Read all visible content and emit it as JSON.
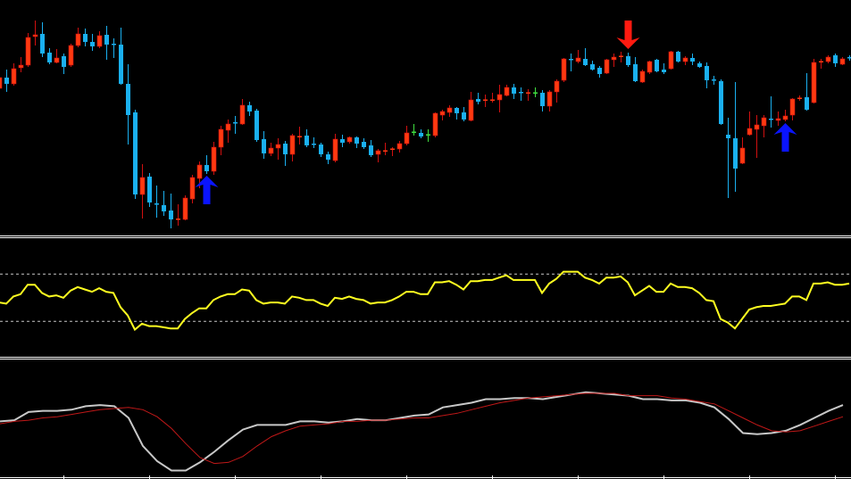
{
  "colors": {
    "background": "#000000",
    "bull_body": "#ff3a10",
    "bull_wick": "#d01010",
    "bear": "#1ab0f0",
    "doji_neutral": "#40e040",
    "buy_arrow": "#0a14ff",
    "sell_arrow": "#ff1a10",
    "oscillator": "#ffff20",
    "level_line": "#c8c8c8",
    "slow_line_silver": "#c8c8c8",
    "signal_line_red": "#c01818",
    "separator": "#ffffff"
  },
  "chart_data": [
    {
      "type": "candlestick",
      "panel": "main",
      "note_fields": [
        "open",
        "high",
        "low",
        "close"
      ],
      "ylim": [
        0,
        270
      ],
      "grid": false,
      "candles": [
        [
          171,
          186,
          167,
          183
        ],
        [
          183,
          192,
          167,
          176
        ],
        [
          176,
          199,
          174,
          193
        ],
        [
          194,
          206,
          189,
          197
        ],
        [
          197,
          233,
          195,
          228
        ],
        [
          229,
          247,
          219,
          231
        ],
        [
          232,
          245,
          206,
          210
        ],
        [
          211,
          216,
          198,
          200
        ],
        [
          200,
          215,
          199,
          205
        ],
        [
          207,
          210,
          187,
          195
        ],
        [
          197,
          221,
          195,
          219
        ],
        [
          219,
          239,
          217,
          232
        ],
        [
          232,
          238,
          218,
          223
        ],
        [
          223,
          232,
          213,
          218
        ],
        [
          218,
          235,
          216,
          230
        ],
        [
          231,
          241,
          203,
          220
        ],
        [
          220.5,
          227,
          205,
          220
        ],
        [
          220,
          239,
          175,
          176
        ],
        [
          176,
          198,
          108,
          141
        ],
        [
          144,
          147,
          47,
          52
        ],
        [
          52,
          86,
          25,
          71
        ],
        [
          72,
          76,
          38,
          43
        ],
        [
          41.5,
          62,
          26,
          41
        ],
        [
          40,
          56,
          28,
          33
        ],
        [
          34,
          53,
          14,
          24
        ],
        [
          24,
          41,
          17,
          24.5
        ],
        [
          24,
          51,
          23,
          48
        ],
        [
          47,
          74,
          42,
          71
        ],
        [
          70,
          89,
          59,
          85
        ],
        [
          85,
          96,
          75,
          78
        ],
        [
          78,
          111,
          74,
          105
        ],
        [
          105,
          129,
          96,
          125
        ],
        [
          124,
          136,
          110,
          131
        ],
        [
          132.5,
          140,
          120,
          132
        ],
        [
          131,
          159,
          130,
          152
        ],
        [
          152,
          156,
          140,
          145
        ],
        [
          146,
          148,
          111,
          113
        ],
        [
          114,
          123,
          92,
          98
        ],
        [
          98,
          110,
          95,
          104
        ],
        [
          104,
          115,
          91,
          108
        ],
        [
          109,
          112,
          84,
          97
        ],
        [
          97,
          120,
          89,
          118
        ],
        [
          116.5,
          128,
          108,
          117
        ],
        [
          118,
          125,
          105,
          107
        ],
        [
          108.5,
          116,
          104,
          108
        ],
        [
          108,
          110,
          94,
          97
        ],
        [
          97,
          100,
          86,
          91
        ],
        [
          90,
          120,
          88,
          114
        ],
        [
          114,
          119,
          105,
          110
        ],
        [
          111,
          117,
          109,
          116
        ],
        [
          116,
          117,
          104,
          109
        ],
        [
          111,
          115,
          103,
          105
        ],
        [
          107,
          113,
          94,
          96
        ],
        [
          97,
          103,
          88,
          101
        ],
        [
          100.5,
          110,
          96,
          101
        ],
        [
          102.5,
          105,
          95,
          103
        ],
        [
          103,
          112,
          99,
          109
        ],
        [
          109,
          129,
          107,
          121
        ],
        [
          122,
          131,
          118,
          122
        ],
        [
          121,
          125,
          115,
          117
        ],
        [
          119,
          125,
          111,
          119
        ],
        [
          118,
          144,
          116,
          143
        ],
        [
          141,
          147,
          135,
          145
        ],
        [
          144,
          152,
          139,
          149
        ],
        [
          149,
          150,
          136,
          143
        ],
        [
          144,
          150,
          134,
          136
        ],
        [
          135,
          167,
          134,
          158
        ],
        [
          159,
          166,
          153,
          156
        ],
        [
          157.5,
          164,
          150,
          158
        ],
        [
          157.5,
          166,
          155,
          158
        ],
        [
          158,
          175,
          144,
          164
        ],
        [
          163,
          175,
          162,
          172
        ],
        [
          172,
          176,
          159,
          165
        ],
        [
          166.5,
          172,
          157,
          166
        ],
        [
          165.5,
          170,
          157,
          166
        ],
        [
          166,
          172,
          161,
          166
        ],
        [
          166,
          169,
          145,
          151
        ],
        [
          151,
          169,
          145,
          167
        ],
        [
          167,
          181,
          155,
          179
        ],
        [
          180,
          205,
          178,
          204
        ],
        [
          203.5,
          210,
          190,
          203
        ],
        [
          201,
          214,
          199,
          205
        ],
        [
          204,
          216,
          196,
          197
        ],
        [
          198,
          202,
          191,
          192
        ],
        [
          194,
          196,
          183,
          187
        ],
        [
          188,
          204,
          187,
          203
        ],
        [
          203,
          210,
          195,
          206
        ],
        [
          206.5,
          212,
          200,
          207
        ],
        [
          207,
          211,
          195,
          197
        ],
        [
          198,
          206,
          178,
          179
        ],
        [
          178,
          192,
          177,
          190
        ],
        [
          189,
          202,
          187,
          201
        ],
        [
          203,
          204,
          189,
          190
        ],
        [
          192,
          199,
          187,
          189
        ],
        [
          193,
          213,
          192,
          212
        ],
        [
          212,
          213,
          200,
          201
        ],
        [
          201,
          207,
          197,
          205
        ],
        [
          205,
          210,
          197,
          201
        ],
        [
          199,
          201,
          194,
          195
        ],
        [
          196,
          200,
          171,
          180
        ],
        [
          180.5,
          185,
          175,
          180
        ],
        [
          179,
          181,
          130,
          131
        ],
        [
          119,
          138,
          48,
          115
        ],
        [
          115,
          178,
          55,
          81
        ],
        [
          87,
          116,
          86,
          104
        ],
        [
          119,
          145,
          118,
          126
        ],
        [
          125,
          141,
          93,
          130
        ],
        [
          129,
          141,
          116,
          138
        ],
        [
          136.5,
          162,
          127,
          136
        ],
        [
          135,
          145,
          129,
          137
        ],
        [
          136,
          147,
          134,
          140
        ],
        [
          141,
          160,
          135,
          159
        ],
        [
          159.5,
          163,
          157,
          160
        ],
        [
          161,
          188,
          146,
          147
        ],
        [
          155,
          204,
          154,
          200
        ],
        [
          200.5,
          204,
          193,
          201
        ],
        [
          201,
          208,
          199,
          206
        ],
        [
          208,
          210,
          195,
          199
        ],
        [
          198,
          206,
          197,
          204
        ],
        [
          205.5,
          208,
          202,
          205
        ]
      ],
      "signals": [
        {
          "index": 29,
          "direction": "up"
        },
        {
          "index": 88,
          "direction": "down"
        },
        {
          "index": 110,
          "direction": "up"
        }
      ]
    },
    {
      "type": "line",
      "panel": "oscillator",
      "ylim": [
        0,
        100
      ],
      "levels": [
        70,
        30
      ],
      "series": [
        {
          "values": [
            46,
            45,
            51,
            53,
            61,
            61,
            54,
            51,
            52,
            50,
            56,
            59,
            57,
            55,
            58,
            55,
            54,
            42,
            35,
            23,
            28,
            26,
            26,
            25,
            24,
            24,
            32,
            37,
            41,
            41,
            48,
            51,
            53,
            53,
            57,
            56,
            48,
            45,
            46,
            46,
            45,
            51,
            50,
            48,
            48,
            45,
            43,
            50,
            49,
            51,
            49,
            48,
            45,
            46,
            46,
            48,
            51,
            55,
            55,
            53,
            53,
            63,
            63,
            64,
            61,
            57,
            64,
            64,
            65,
            65,
            67,
            69,
            65,
            65,
            65,
            65,
            54,
            62,
            66,
            72,
            72,
            72,
            67,
            65,
            62,
            67,
            67,
            68,
            63,
            52,
            56,
            60,
            55,
            55,
            62,
            59,
            59,
            58,
            54,
            48,
            47,
            32,
            29,
            24,
            32,
            40,
            42,
            43,
            43,
            44,
            45,
            51,
            51,
            48,
            62,
            62,
            63,
            61,
            61,
            62
          ]
        }
      ]
    },
    {
      "type": "line",
      "panel": "lower",
      "ylim": [
        0,
        100
      ],
      "x_step_candles": 2,
      "series": [
        {
          "color_key": "slow_line_silver",
          "values": [
            47,
            48,
            55,
            56,
            56,
            57,
            60,
            61,
            60,
            50,
            26,
            13,
            5,
            5,
            12,
            21,
            31,
            40,
            44,
            44,
            44,
            47,
            47,
            46,
            47,
            49,
            48,
            48,
            50,
            52,
            53,
            59,
            61,
            63,
            66,
            66,
            67,
            67,
            66,
            68,
            70,
            72,
            71,
            70,
            69,
            66,
            66,
            65,
            65,
            63,
            59,
            49,
            37,
            36,
            37,
            39,
            44,
            50,
            56,
            61
          ]
        },
        {
          "color_key": "signal_line_red",
          "values": [
            45,
            47,
            48,
            50,
            51,
            53,
            55,
            57,
            58,
            59,
            57,
            51,
            41,
            28,
            16,
            11,
            12,
            17,
            26,
            34,
            39,
            43,
            44,
            45,
            47,
            47,
            48,
            48,
            49,
            50,
            50,
            52,
            54,
            57,
            60,
            63,
            65,
            67,
            68,
            69,
            70,
            71,
            71,
            71,
            69,
            69,
            69,
            67,
            66,
            64,
            62,
            56,
            50,
            44,
            39,
            38,
            39,
            43,
            47,
            51
          ]
        }
      ]
    }
  ]
}
